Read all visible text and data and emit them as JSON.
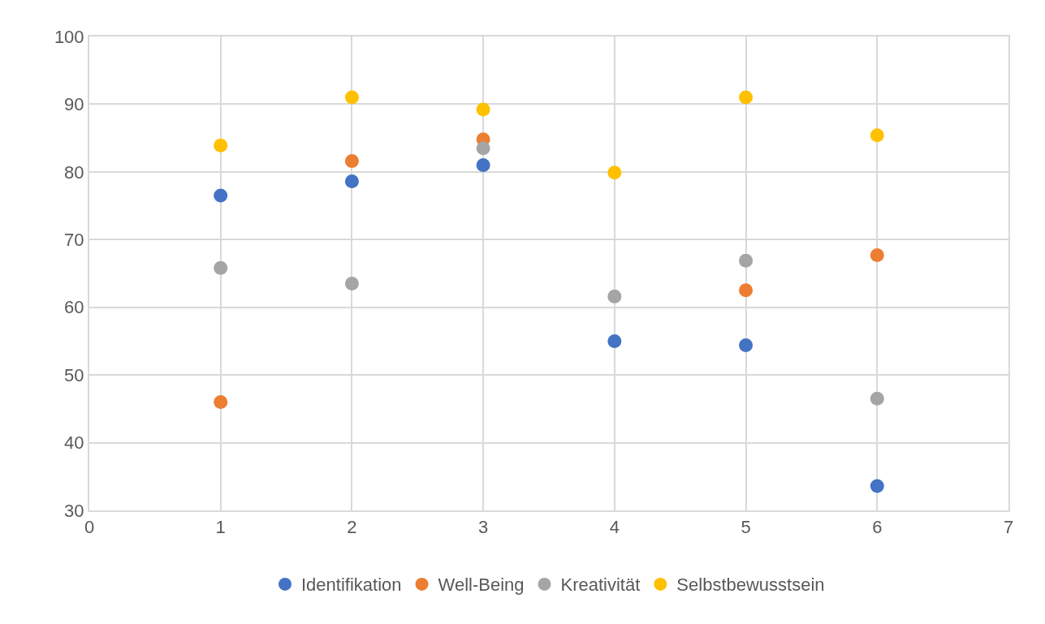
{
  "chart_data": {
    "type": "scatter",
    "x": [
      1,
      2,
      3,
      4,
      5,
      6
    ],
    "series": [
      {
        "name": "Identifikation",
        "color": "#4472c4",
        "values": [
          76.5,
          78.6,
          81.0,
          55.0,
          54.4,
          33.6
        ]
      },
      {
        "name": "Well-Being",
        "color": "#ed7d31",
        "values": [
          46.0,
          81.6,
          84.8,
          null,
          62.5,
          67.7
        ]
      },
      {
        "name": "Kreativität",
        "color": "#a5a5a5",
        "values": [
          65.8,
          63.5,
          83.5,
          61.6,
          66.9,
          46.5
        ]
      },
      {
        "name": "Selbstbewusstsein",
        "color": "#ffc000",
        "values": [
          83.9,
          91.0,
          89.2,
          79.9,
          91.0,
          85.4
        ]
      }
    ],
    "xlim": [
      0,
      7
    ],
    "xticks": [
      0,
      1,
      2,
      3,
      4,
      5,
      6,
      7
    ],
    "ylim": [
      30,
      100
    ],
    "yticks": [
      30,
      40,
      50,
      60,
      70,
      80,
      90,
      100
    ],
    "grid": true,
    "legend": "bottom",
    "marker": "circle"
  }
}
